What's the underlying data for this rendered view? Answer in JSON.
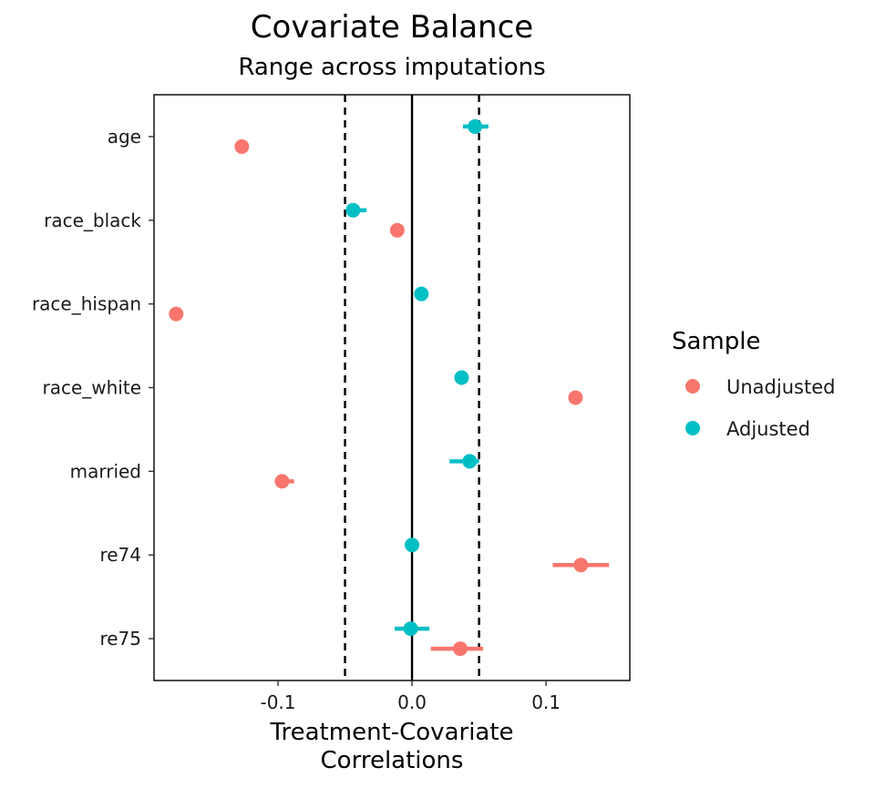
{
  "chart_data": {
    "type": "scatter",
    "title": "Covariate Balance",
    "subtitle": "Range across imputations",
    "xlabel": "Treatment-Covariate\nCorrelations",
    "ylabel": "",
    "categories": [
      "age",
      "race_black",
      "race_hispan",
      "race_white",
      "married",
      "re74",
      "re75"
    ],
    "xlim": [
      -0.1925,
      0.1625
    ],
    "x_ticks": [
      -0.1,
      0.0,
      0.1
    ],
    "x_tick_labels": [
      "-0.1",
      "0.0",
      "0.1"
    ],
    "thresholds": [
      -0.05,
      0.05
    ],
    "zero_line": 0.0,
    "grid": false,
    "legend": {
      "title": "Sample",
      "position": "right"
    },
    "series": [
      {
        "name": "Unadjusted",
        "color": "#F8766D",
        "values": [
          -0.127,
          -0.011,
          -0.176,
          0.122,
          -0.097,
          0.126,
          0.036
        ],
        "ranges": [
          [
            -0.127,
            -0.127
          ],
          [
            -0.011,
            -0.011
          ],
          [
            -0.176,
            -0.176
          ],
          [
            0.122,
            0.122
          ],
          [
            -0.098,
            -0.088
          ],
          [
            0.105,
            0.147
          ],
          [
            0.014,
            0.053
          ]
        ]
      },
      {
        "name": "Adjusted",
        "color": "#00BFC4",
        "values": [
          0.047,
          -0.044,
          0.007,
          0.037,
          0.043,
          0.0,
          -0.001
        ],
        "ranges": [
          [
            0.038,
            0.057
          ],
          [
            -0.044,
            -0.034
          ],
          [
            0.007,
            0.007
          ],
          [
            0.037,
            0.037
          ],
          [
            0.028,
            0.05
          ],
          [
            0.0,
            0.0
          ],
          [
            -0.013,
            0.013
          ]
        ]
      }
    ]
  }
}
